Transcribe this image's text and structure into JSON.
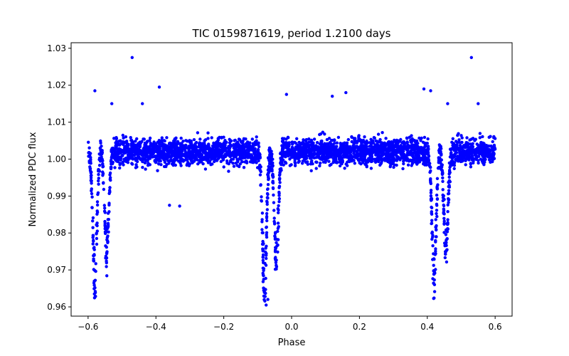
{
  "chart_data": {
    "type": "scatter",
    "title": "TIC 0159871619, period 1.2100 days",
    "xlabel": "Phase",
    "ylabel": "Normalized PDC flux",
    "xlim": [
      -0.65,
      0.65
    ],
    "ylim": [
      0.9575,
      1.0315
    ],
    "xticks": [
      -0.6,
      -0.4,
      -0.2,
      0.0,
      0.2,
      0.4,
      0.6
    ],
    "xtick_labels": [
      "−0.6",
      "−0.4",
      "−0.2",
      "0.0",
      "0.2",
      "0.4",
      "0.6"
    ],
    "yticks": [
      0.96,
      0.97,
      0.98,
      0.99,
      1.0,
      1.01,
      1.02,
      1.03
    ],
    "ytick_labels": [
      "0.96",
      "0.97",
      "0.98",
      "0.99",
      "1.00",
      "1.01",
      "1.02",
      "1.03"
    ],
    "grid": false,
    "marker_color": "#0000ff",
    "phase_range": [
      -0.6,
      0.6
    ],
    "baseline_flux": 1.002,
    "scatter_band": [
      0.995,
      1.012
    ],
    "eclipses": [
      {
        "center": -0.58,
        "depth_min": 0.964
      },
      {
        "center": -0.545,
        "depth_min": 0.971
      },
      {
        "center": -0.08,
        "depth_min": 0.961
      },
      {
        "center": -0.045,
        "depth_min": 0.969
      },
      {
        "center": 0.42,
        "depth_min": 0.964
      },
      {
        "center": 0.455,
        "depth_min": 0.971
      }
    ],
    "outliers": [
      {
        "x": -0.47,
        "y": 1.0275
      },
      {
        "x": 0.53,
        "y": 1.0275
      },
      {
        "x": -0.39,
        "y": 1.0195
      },
      {
        "x": -0.58,
        "y": 1.0185
      },
      {
        "x": 0.39,
        "y": 1.019
      },
      {
        "x": 0.41,
        "y": 1.0185
      },
      {
        "x": 0.16,
        "y": 1.018
      },
      {
        "x": -0.015,
        "y": 1.0175
      },
      {
        "x": 0.12,
        "y": 1.017
      },
      {
        "x": -0.53,
        "y": 1.015
      },
      {
        "x": -0.44,
        "y": 1.015
      },
      {
        "x": 0.46,
        "y": 1.015
      },
      {
        "x": 0.55,
        "y": 1.015
      },
      {
        "x": -0.36,
        "y": 0.9875
      },
      {
        "x": -0.33,
        "y": 0.9873
      },
      {
        "x": -0.075,
        "y": 0.9605
      },
      {
        "x": -0.07,
        "y": 0.962
      }
    ]
  }
}
